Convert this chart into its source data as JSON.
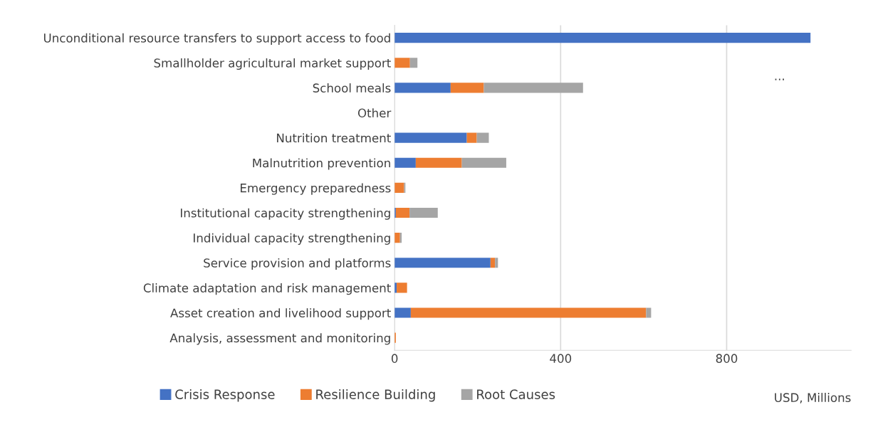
{
  "chart_data": {
    "type": "bar",
    "orientation": "horizontal",
    "stacked": true,
    "categories": [
      "Unconditional resource transfers to support access to food",
      "Smallholder agricultural market support",
      "School meals",
      "Other",
      "Nutrition treatment",
      "Malnutrition prevention",
      "Emergency preparedness",
      "Institutional capacity strengthening",
      "Individual capacity strengthening",
      "Service provision and platforms",
      "Climate adaptation and risk management",
      "Asset creation and livelihood support",
      "Analysis, assessment and monitoring"
    ],
    "series": [
      {
        "name": "Crisis Response",
        "color": "#4472c4",
        "values": [
          1002,
          0,
          135,
          0,
          174,
          51,
          0,
          3,
          0,
          231,
          5,
          39,
          0
        ]
      },
      {
        "name": "Resilience Building",
        "color": "#ed7d31",
        "values": [
          0,
          37,
          80,
          0,
          24,
          111,
          23,
          33,
          13,
          11,
          25,
          567,
          3
        ]
      },
      {
        "name": "Root Causes",
        "color": "#a5a5a5",
        "values": [
          0,
          18,
          239,
          0,
          29,
          107,
          3,
          68,
          4,
          7,
          0,
          12,
          null
        ]
      }
    ],
    "xlim": [
      0,
      1100
    ],
    "xticks": [
      0,
      400,
      800
    ],
    "xlabel": "USD, Millions",
    "grid": "x",
    "legend": "bottom",
    "annotations": [
      "..."
    ]
  }
}
